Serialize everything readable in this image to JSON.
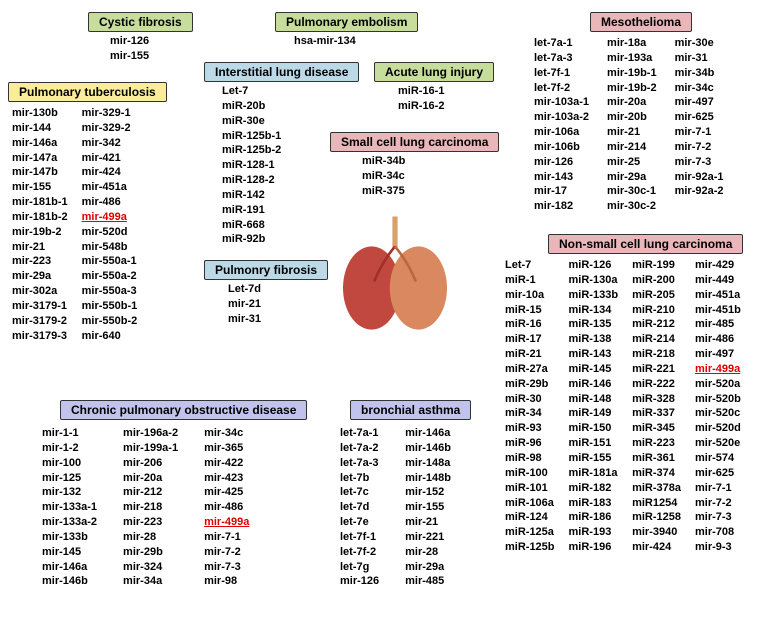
{
  "colors": {
    "green_bg": "#c7dd9b",
    "yellow_bg": "#f9ec9a",
    "blue_bg": "#bcd9e8",
    "pink_bg": "#e9b7b9",
    "purple_bg": "#c1c3ec",
    "border": "#333333",
    "text": "#000000",
    "highlight": "#dd0000"
  },
  "cystic_fibrosis": {
    "title": "Cystic fibrosis",
    "items": [
      "mir-126",
      "mir-155"
    ]
  },
  "pulmonary_embolism": {
    "title": "Pulmonary embolism",
    "items": [
      "hsa-mir-134"
    ]
  },
  "interstitial": {
    "title": "Interstitial lung disease",
    "items": [
      "Let-7",
      "miR-20b",
      "miR-30e",
      "miR-125b-1",
      "miR-125b-2",
      "miR-128-1",
      "miR-128-2",
      "miR-142",
      "miR-191",
      "miR-668",
      "miR-92b"
    ]
  },
  "acute": {
    "title": "Acute lung injury",
    "items": [
      "miR-16-1",
      "miR-16-2"
    ]
  },
  "pulm_tb": {
    "title": "Pulmonary tuberculosis",
    "col1": [
      "mir-130b",
      "mir-144",
      "mir-146a",
      "mir-147a",
      "mir-147b",
      "mir-155",
      "mir-181b-1",
      "mir-181b-2",
      "mir-19b-2",
      "mir-21",
      "mir-223",
      "mir-29a",
      "mir-302a",
      "mir-3179-1",
      "mir-3179-2",
      "mir-3179-3"
    ],
    "col2": [
      "mir-329-1",
      "mir-329-2",
      "mir-342",
      "mir-421",
      "mir-424",
      "mir-451a",
      "mir-486",
      "mir-499a",
      "mir-520d",
      "mir-548b",
      "mir-550a-1",
      "mir-550a-2",
      "mir-550a-3",
      "mir-550b-1",
      "mir-550b-2",
      "mir-640"
    ]
  },
  "pulm_fibrosis": {
    "title": "Pulmonry fibrosis",
    "items": [
      "Let-7d",
      "mir-21",
      "mir-31"
    ]
  },
  "sclc": {
    "title": "Small cell lung carcinoma",
    "items": [
      "miR-34b",
      "miR-34c",
      "miR-375"
    ]
  },
  "meso": {
    "title": "Mesothelioma",
    "col1": [
      "let-7a-1",
      "let-7a-3",
      "let-7f-1",
      "let-7f-2",
      "mir-103a-1",
      "mir-103a-2",
      "mir-106a",
      "mir-106b",
      "mir-126",
      "mir-143",
      "mir-17",
      "mir-182"
    ],
    "col2": [
      "mir-18a",
      "mir-193a",
      "mir-19b-1",
      "mir-19b-2",
      "mir-20a",
      "mir-20b",
      "mir-21",
      "mir-214",
      "mir-25",
      "mir-29a",
      "mir-30c-1",
      "mir-30c-2"
    ],
    "col3": [
      "mir-30e",
      "mir-31",
      "mir-34b",
      "mir-34c",
      "mir-497",
      "mir-625",
      "mir-7-1",
      "mir-7-2",
      "mir-7-3",
      "mir-92a-1",
      "mir-92a-2"
    ]
  },
  "nsclc": {
    "title": "Non-small cell lung carcinoma",
    "col1": [
      "Let-7",
      "miR-1",
      "mir-10a",
      "miR-15",
      "miR-16",
      "miR-17",
      "miR-21",
      "miR-27a",
      "miR-29b",
      "miR-30",
      "miR-34",
      "miR-93",
      "miR-96",
      "miR-98",
      "miR-100",
      "miR-101",
      "miR-106a",
      "miR-124",
      "miR-125a",
      "miR-125b"
    ],
    "col2": [
      "miR-126",
      "miR-130a",
      "miR-133b",
      "miR-134",
      "miR-135",
      "miR-138",
      "miR-143",
      "miR-145",
      "miR-146",
      "miR-148",
      "miR-149",
      "miR-150",
      "miR-151",
      "miR-155",
      "miR-181a",
      "miR-182",
      "miR-183",
      "miR-186",
      "miR-193",
      "miR-196"
    ],
    "col3": [
      "miR-199",
      "miR-200",
      "miR-205",
      "miR-210",
      "miR-212",
      "miR-214",
      "miR-218",
      "miR-221",
      "miR-222",
      "miR-328",
      "miR-337",
      "miR-345",
      "miR-223",
      "miR-361",
      "miR-374",
      "miR-378a",
      "miR1254",
      "miR-1258",
      "mir-3940",
      "mir-424"
    ],
    "col4": [
      "mir-429",
      "mir-449",
      "mir-451a",
      "mir-451b",
      "mir-485",
      "mir-486",
      "mir-497",
      "mir-499a",
      "mir-520a",
      "mir-520b",
      "mir-520c",
      "mir-520d",
      "mir-520e",
      "mir-574",
      "mir-625",
      "mir-7-1",
      "mir-7-2",
      "mir-7-3",
      "mir-708",
      "mir-9-3"
    ]
  },
  "copd": {
    "title": "Chronic pulmonary obstructive disease",
    "col1": [
      "mir-1-1",
      "mir-1-2",
      "mir-100",
      "mir-125",
      "mir-132",
      "mir-133a-1",
      "mir-133a-2",
      "mir-133b",
      "mir-145",
      "mir-146a",
      "mir-146b"
    ],
    "col2": [
      "mir-196a-2",
      "mir-199a-1",
      "mir-206",
      "mir-20a",
      "mir-212",
      "mir-218",
      "mir-223",
      "mir-28",
      "mir-29b",
      "mir-324",
      "mir-34a"
    ],
    "col3": [
      "mir-34c",
      "mir-365",
      "mir-422",
      "mir-423",
      "mir-425",
      "mir-486",
      "mir-499a",
      "mir-7-1",
      "mir-7-2",
      "mir-7-3",
      "mir-98"
    ]
  },
  "asthma": {
    "title": "bronchial asthma",
    "col1": [
      "let-7a-1",
      "let-7a-2",
      "let-7a-3",
      "let-7b",
      "let-7c",
      "let-7d",
      "let-7e",
      "let-7f-1",
      "let-7f-2",
      "let-7g",
      "mir-126"
    ],
    "col2": [
      "mir-146a",
      "mir-146b",
      "mir-148a",
      "mir-148b",
      "mir-152",
      "mir-155",
      "mir-21",
      "mir-221",
      "mir-28",
      "mir-29a",
      "mir-485"
    ]
  }
}
